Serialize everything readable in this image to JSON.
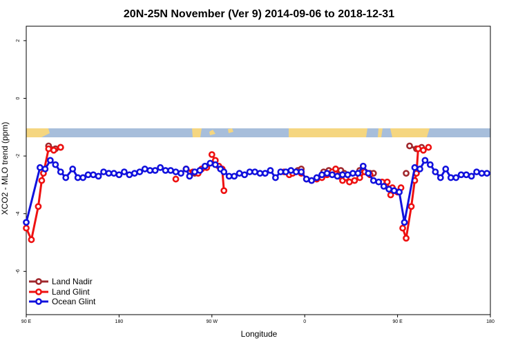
{
  "chart_data": {
    "type": "line",
    "title": "20N-25N November (Ver 9)   2014-09-06 to 2018-12-31",
    "xlabel": "Longitude",
    "ylabel": "XCO2 - MLO trend (ppm)",
    "xlim": [
      -90,
      180
    ],
    "ylim": [
      -7.5,
      2.5
    ],
    "x_ticks": [
      {
        "value": -90,
        "label": "90 E"
      },
      {
        "value": -36,
        "label": "180"
      },
      {
        "value": 18,
        "label": "90 W"
      },
      {
        "value": 72,
        "label": "0"
      },
      {
        "value": 126,
        "label": "90 E"
      },
      {
        "value": 180,
        "label": "180"
      }
    ],
    "y_ticks": [
      {
        "value": 2,
        "label": "2"
      },
      {
        "value": 0,
        "label": "0"
      },
      {
        "value": -2,
        "label": "-2"
      },
      {
        "value": -4,
        "label": "-4"
      },
      {
        "value": -6,
        "label": "-6"
      }
    ],
    "map_strip": {
      "y_top": -1.2,
      "y_bottom": -1.5,
      "ocean_color": "#a7bedb",
      "land_color": "#f5d680"
    },
    "legend_position": "bottom-left",
    "series": [
      {
        "name": "Land Nadir",
        "color": "#a0282d",
        "segments": [
          [
            [
              -77,
              -1.65
            ],
            [
              -73,
              -1.75
            ],
            [
              -70,
              -1.7
            ]
          ],
          [
            [
              3,
              -2.45
            ],
            [
              8,
              -2.6
            ]
          ],
          [
            [
              63,
              -2.55
            ],
            [
              68,
              -2.5
            ],
            [
              70,
              -2.45
            ]
          ],
          [
            [
              83,
              -2.55
            ],
            [
              86,
              -2.5
            ],
            [
              90,
              -2.45
            ],
            [
              93,
              -2.5
            ],
            [
              95,
              -2.6
            ]
          ],
          [
            [
              104,
              -2.5
            ],
            [
              107,
              -2.55
            ],
            [
              110,
              -2.6
            ],
            [
              112,
              -2.6
            ]
          ],
          [
            [
              131,
              -2.6
            ]
          ],
          [
            [
              133,
              -1.65
            ],
            [
              137,
              -1.75
            ],
            [
              140,
              -1.7
            ]
          ]
        ]
      },
      {
        "name": "Land Glint",
        "color": "#ee1111",
        "segments": [
          [
            [
              -90,
              -4.5
            ],
            [
              -87,
              -4.9
            ],
            [
              -83,
              -3.75
            ],
            [
              -81,
              -2.85
            ],
            [
              -80,
              -2.6
            ],
            [
              -77,
              -1.75
            ],
            [
              -74,
              -1.8
            ],
            [
              -70,
              -1.7
            ]
          ],
          [
            [
              -3,
              -2.8
            ]
          ],
          [
            [
              3,
              -2.45
            ],
            [
              7,
              -2.55
            ],
            [
              10,
              -2.6
            ],
            [
              12,
              -2.45
            ],
            [
              15,
              -2.4
            ]
          ],
          [
            [
              18,
              -1.95
            ],
            [
              20,
              -2.15
            ],
            [
              22,
              -2.35
            ],
            [
              24,
              -2.45
            ],
            [
              25,
              -3.2
            ]
          ],
          [
            [
              60,
              -2.55
            ],
            [
              63,
              -2.65
            ],
            [
              65,
              -2.6
            ],
            [
              70,
              -2.6
            ]
          ],
          [
            [
              73,
              -2.8
            ],
            [
              76,
              -2.85
            ],
            [
              79,
              -2.8
            ],
            [
              82,
              -2.75
            ],
            [
              85,
              -2.65
            ],
            [
              88,
              -2.55
            ],
            [
              90,
              -2.45
            ],
            [
              92,
              -2.7
            ],
            [
              94,
              -2.85
            ],
            [
              96,
              -2.75
            ],
            [
              98,
              -2.9
            ],
            [
              101,
              -2.85
            ],
            [
              104,
              -2.75
            ],
            [
              107,
              -2.55
            ],
            [
              110,
              -2.65
            ]
          ],
          [
            [
              117,
              -2.9
            ],
            [
              120,
              -2.9
            ],
            [
              122,
              -3.35
            ],
            [
              123,
              -3.1
            ],
            [
              126,
              -3.25
            ],
            [
              128,
              -3.1
            ]
          ],
          [
            [
              129,
              -4.5
            ],
            [
              131,
              -4.85
            ],
            [
              134,
              -3.75
            ],
            [
              136,
              -2.85
            ],
            [
              137,
              -2.6
            ],
            [
              138,
              -1.75
            ],
            [
              141,
              -1.8
            ],
            [
              144,
              -1.7
            ]
          ]
        ]
      },
      {
        "name": "Ocean Glint",
        "color": "#1111dd",
        "segments": [
          [
            [
              -90,
              -4.3
            ],
            [
              -82,
              -2.4
            ],
            [
              -79,
              -2.45
            ],
            [
              -76,
              -2.15
            ],
            [
              -73,
              -2.3
            ],
            [
              -70,
              -2.55
            ],
            [
              -67,
              -2.75
            ],
            [
              -63,
              -2.45
            ],
            [
              -60,
              -2.75
            ],
            [
              -57,
              -2.75
            ],
            [
              -54,
              -2.65
            ],
            [
              -51,
              -2.65
            ],
            [
              -48,
              -2.7
            ],
            [
              -45,
              -2.55
            ],
            [
              -42,
              -2.6
            ],
            [
              -39,
              -2.6
            ],
            [
              -36,
              -2.65
            ],
            [
              -33,
              -2.55
            ],
            [
              -30,
              -2.65
            ],
            [
              -27,
              -2.6
            ],
            [
              -24,
              -2.55
            ],
            [
              -21,
              -2.45
            ],
            [
              -18,
              -2.5
            ],
            [
              -15,
              -2.5
            ],
            [
              -12,
              -2.4
            ],
            [
              -9,
              -2.5
            ],
            [
              -6,
              -2.5
            ],
            [
              -3,
              -2.55
            ],
            [
              0,
              -2.6
            ],
            [
              3,
              -2.45
            ],
            [
              5,
              -2.7
            ],
            [
              8,
              -2.55
            ],
            [
              11,
              -2.5
            ],
            [
              14,
              -2.35
            ],
            [
              17,
              -2.25
            ],
            [
              20,
              -2.3
            ],
            [
              23,
              -2.45
            ],
            [
              25,
              -2.55
            ],
            [
              28,
              -2.7
            ],
            [
              31,
              -2.7
            ],
            [
              34,
              -2.6
            ],
            [
              37,
              -2.65
            ],
            [
              40,
              -2.55
            ],
            [
              43,
              -2.55
            ],
            [
              46,
              -2.6
            ],
            [
              49,
              -2.6
            ],
            [
              52,
              -2.5
            ],
            [
              55,
              -2.75
            ],
            [
              58,
              -2.55
            ],
            [
              61,
              -2.55
            ],
            [
              64,
              -2.5
            ],
            [
              67,
              -2.55
            ],
            [
              70,
              -2.55
            ],
            [
              73,
              -2.8
            ],
            [
              76,
              -2.85
            ],
            [
              79,
              -2.75
            ],
            [
              82,
              -2.65
            ],
            [
              85,
              -2.6
            ],
            [
              88,
              -2.65
            ],
            [
              91,
              -2.7
            ],
            [
              94,
              -2.65
            ],
            [
              97,
              -2.65
            ],
            [
              100,
              -2.6
            ],
            [
              103,
              -2.6
            ],
            [
              106,
              -2.35
            ],
            [
              109,
              -2.6
            ],
            [
              112,
              -2.85
            ],
            [
              115,
              -2.9
            ],
            [
              118,
              -3.05
            ],
            [
              121,
              -3.15
            ],
            [
              124,
              -3.2
            ],
            [
              127,
              -3.25
            ],
            [
              130,
              -4.3
            ],
            [
              136,
              -2.4
            ],
            [
              139,
              -2.45
            ],
            [
              142,
              -2.15
            ],
            [
              145,
              -2.3
            ],
            [
              148,
              -2.55
            ],
            [
              151,
              -2.75
            ],
            [
              154,
              -2.45
            ],
            [
              157,
              -2.75
            ],
            [
              160,
              -2.75
            ],
            [
              163,
              -2.65
            ],
            [
              166,
              -2.65
            ],
            [
              169,
              -2.7
            ],
            [
              172,
              -2.55
            ],
            [
              175,
              -2.6
            ],
            [
              178,
              -2.6
            ]
          ]
        ]
      }
    ]
  }
}
